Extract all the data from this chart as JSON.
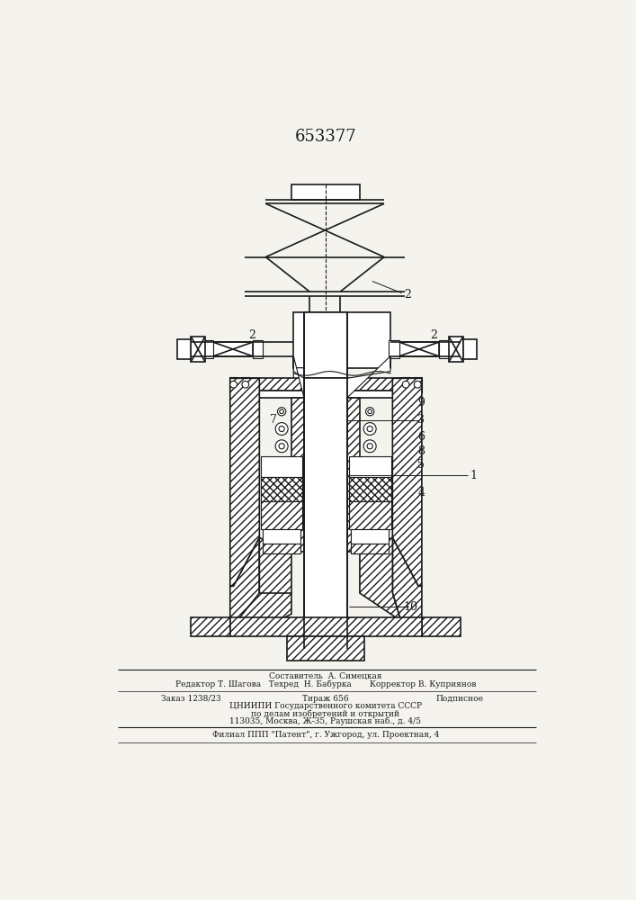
{
  "title": "653377",
  "bg_color": "#f5f3ee",
  "line_color": "#1a1a1a",
  "footer": {
    "line1": "Составитель  А. Симецкая",
    "line2": "Редактор Т. Шагова   Техред  Н. Бабурка       Корректор В. Куприянов",
    "line3a": "Заказ 1238/23",
    "line3b": "Тираж 656",
    "line3c": "Подписное",
    "line4": "ЦНИИПИ Государственного комитета СССР",
    "line5": "по делам изобретений и открытий",
    "line6": "113035, Москва, Ж-35, Раушская наб., д. 4/5",
    "line7": "Филиал ППП \"Патент\", г. Ужгород, ул. Проектная, 4"
  }
}
